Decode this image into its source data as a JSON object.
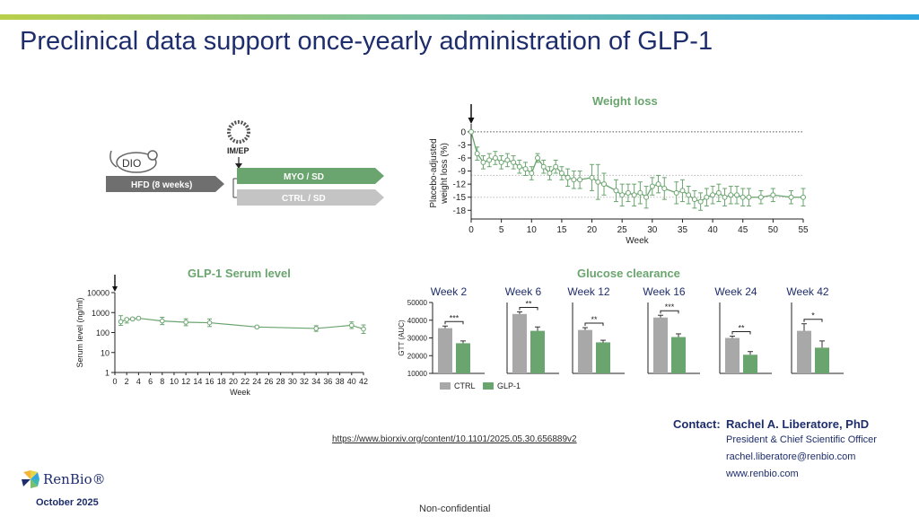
{
  "slide": {
    "title": "Preclinical data support once-yearly administration of GLP-1",
    "reference_link": "https://www.biorxiv.org/content/10.1101/2025.05.30.656889v2",
    "footer": "Non-confidential",
    "date": "October 2025",
    "logo_text": "RenBio®"
  },
  "colors": {
    "accent_green": "#6aa46e",
    "navy": "#1e2d6b",
    "ctrl_gray": "#a8a8a8"
  },
  "schematic": {
    "mouse_label": "DIO",
    "hfd_label": "HFD (8 weeks)",
    "injection_label": "IM/EP",
    "arm_myo": "MYO / SD",
    "arm_ctrl": "CTRL / SD"
  },
  "contact": {
    "label": "Contact:",
    "name": "Rachel A. Liberatore, PhD",
    "role": "President & Chief Scientific Officer",
    "email": "rachel.liberatore@renbio.com",
    "website": "www.renbio.com"
  },
  "chart_data": [
    {
      "id": "weight",
      "type": "line",
      "title": "Weight loss",
      "xlabel": "Week",
      "ylabel": "Placebo-adjusted weight loss (%)",
      "xlim": [
        0,
        55
      ],
      "ylim": [
        -20,
        1
      ],
      "x_ticks": [
        0,
        5,
        10,
        15,
        20,
        25,
        30,
        35,
        40,
        45,
        50,
        55
      ],
      "y_ticks": [
        0,
        -3,
        -6,
        -9,
        -12,
        -15,
        -18
      ],
      "reference_lines": [
        0,
        -10,
        -15
      ],
      "x": [
        0,
        1,
        2,
        3,
        4,
        5,
        6,
        7,
        8,
        9,
        10,
        11,
        12,
        13,
        14,
        15,
        16,
        17,
        18,
        20,
        21,
        22,
        24,
        25,
        26,
        27,
        28,
        29,
        30,
        31,
        32,
        34,
        35,
        36,
        37,
        38,
        39,
        40,
        41,
        42,
        43,
        44,
        45,
        46,
        48,
        50,
        53,
        55
      ],
      "y": [
        0,
        -5,
        -7,
        -6.5,
        -6,
        -7,
        -6.5,
        -7,
        -8,
        -8.5,
        -9.5,
        -6,
        -8,
        -9.5,
        -8,
        -9.5,
        -10.5,
        -11,
        -11,
        -10.5,
        -11.5,
        -12,
        -13.5,
        -14.5,
        -14,
        -14.5,
        -14,
        -15,
        -12.5,
        -12,
        -13,
        -14,
        -13.5,
        -14.5,
        -15.5,
        -16,
        -15,
        -14.5,
        -14,
        -15,
        -14.5,
        -14.5,
        -15,
        -15,
        -15,
        -14.5,
        -15,
        -15
      ],
      "err": [
        0.2,
        1.5,
        1.5,
        1.5,
        1.5,
        1.5,
        1.5,
        1.5,
        1.5,
        1.5,
        1.5,
        1,
        1.5,
        1.5,
        1.5,
        1.5,
        2,
        2,
        2,
        3,
        4,
        2.5,
        2.5,
        2.5,
        2,
        2.5,
        2.5,
        2.5,
        2,
        2,
        2.5,
        2.5,
        2.5,
        2,
        2,
        2,
        2,
        2,
        2,
        2,
        2,
        2,
        2,
        2,
        1.5,
        1.5,
        1.5,
        2
      ],
      "arrow_at_x": 0
    },
    {
      "id": "serum",
      "type": "line",
      "title": "GLP-1 Serum level",
      "xlabel": "Week",
      "ylabel": "Serum level (ng/ml)",
      "y_scale": "log",
      "xlim": [
        0,
        42
      ],
      "ylim": [
        1,
        10000
      ],
      "x_ticks": [
        0,
        2,
        4,
        6,
        8,
        10,
        12,
        14,
        16,
        18,
        20,
        22,
        24,
        26,
        28,
        30,
        32,
        34,
        36,
        38,
        40,
        42
      ],
      "y_ticks": [
        1,
        10,
        100,
        1000,
        10000
      ],
      "y_tick_labels": [
        "1",
        "10",
        "100",
        "1000",
        "10000"
      ],
      "x": [
        1,
        2,
        3,
        4,
        8,
        12,
        16,
        24,
        34,
        40,
        42
      ],
      "y": [
        350,
        450,
        480,
        520,
        380,
        330,
        310,
        190,
        160,
        230,
        150
      ],
      "err_lo": [
        120,
        150,
        60,
        60,
        130,
        110,
        110,
        25,
        45,
        70,
        60
      ],
      "err_hi": [
        350,
        70,
        60,
        60,
        200,
        160,
        170,
        25,
        60,
        110,
        90
      ],
      "arrow_at_x": 0
    },
    {
      "id": "glucose",
      "type": "bar",
      "title": "Glucose clearance",
      "ylabel": "GTT (AUC)",
      "ylim": [
        10000,
        50000
      ],
      "y_ticks": [
        10000,
        20000,
        30000,
        40000,
        50000
      ],
      "y_tick_labels": [
        "10000",
        "20000",
        "30000",
        "40000",
        "50000"
      ],
      "legend": [
        "CTRL",
        "GLP-1"
      ],
      "panels": [
        {
          "label": "Week 2",
          "ctrl": 35500,
          "glp": 27000,
          "ctrl_err": 1200,
          "glp_err": 1300,
          "sig": "***"
        },
        {
          "label": "Week 6",
          "ctrl": 43500,
          "glp": 34000,
          "ctrl_err": 1200,
          "glp_err": 2200,
          "sig": "**"
        },
        {
          "label": "Week 12",
          "ctrl": 34500,
          "glp": 27500,
          "ctrl_err": 1300,
          "glp_err": 1200,
          "sig": "**"
        },
        {
          "label": "Week 16",
          "ctrl": 41500,
          "glp": 30500,
          "ctrl_err": 1300,
          "glp_err": 1800,
          "sig": "***"
        },
        {
          "label": "Week 24",
          "ctrl": 30000,
          "glp": 20500,
          "ctrl_err": 1000,
          "glp_err": 1800,
          "sig": "**"
        },
        {
          "label": "Week 42",
          "ctrl": 34000,
          "glp": 24500,
          "ctrl_err": 4000,
          "glp_err": 3800,
          "sig": "*"
        }
      ]
    }
  ]
}
